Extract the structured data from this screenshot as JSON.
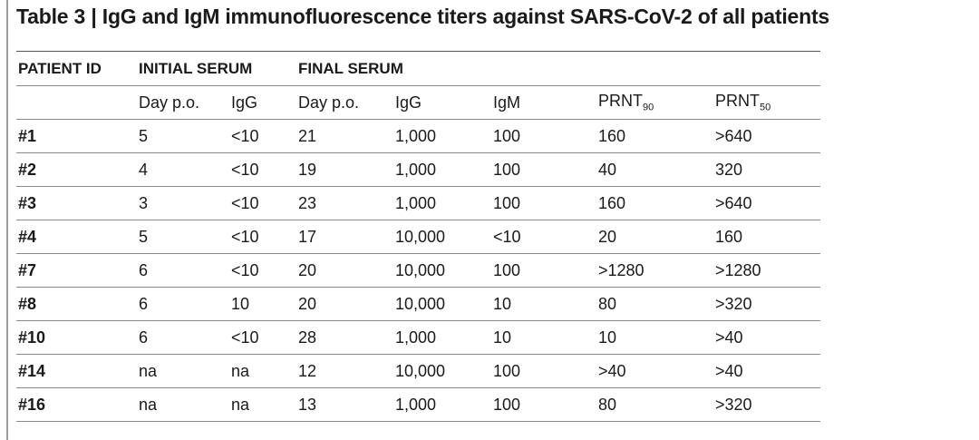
{
  "header": {
    "title": "Table 3 | IgG and IgM immunofluorescence titers against SARS-CoV-2 of all patients"
  },
  "table": {
    "group_headers": [
      "PATIENT ID",
      "INITIAL SERUM",
      "FINAL SERUM"
    ],
    "column_headers": [
      {
        "text": "Day p.o."
      },
      {
        "text": "IgG"
      },
      {
        "text": "Day p.o."
      },
      {
        "text": "IgG"
      },
      {
        "text": "IgM"
      },
      {
        "text": "PRNT",
        "sub": "90"
      },
      {
        "text": "PRNT",
        "sub": "50"
      }
    ],
    "rows": [
      [
        "#1",
        "5",
        "<10",
        "21",
        "1,000",
        "100",
        "160",
        ">640"
      ],
      [
        "#2",
        "4",
        "<10",
        "19",
        "1,000",
        "100",
        "40",
        "320"
      ],
      [
        "#3",
        "3",
        "<10",
        "23",
        "1,000",
        "100",
        "160",
        ">640"
      ],
      [
        "#4",
        "5",
        "<10",
        "17",
        "10,000",
        "<10",
        "20",
        "160"
      ],
      [
        "#7",
        "6",
        "<10",
        "20",
        "10,000",
        "100",
        ">1280",
        ">1280"
      ],
      [
        "#8",
        "6",
        "10",
        "20",
        "10,000",
        "10",
        "80",
        ">320"
      ],
      [
        "#10",
        "6",
        "<10",
        "28",
        "1,000",
        "10",
        "10",
        ">40"
      ],
      [
        "#14",
        "na",
        "na",
        "12",
        "10,000",
        "100",
        ">40",
        ">40"
      ],
      [
        "#16",
        "na",
        "na",
        "13",
        "1,000",
        "100",
        "80",
        ">320"
      ]
    ]
  }
}
